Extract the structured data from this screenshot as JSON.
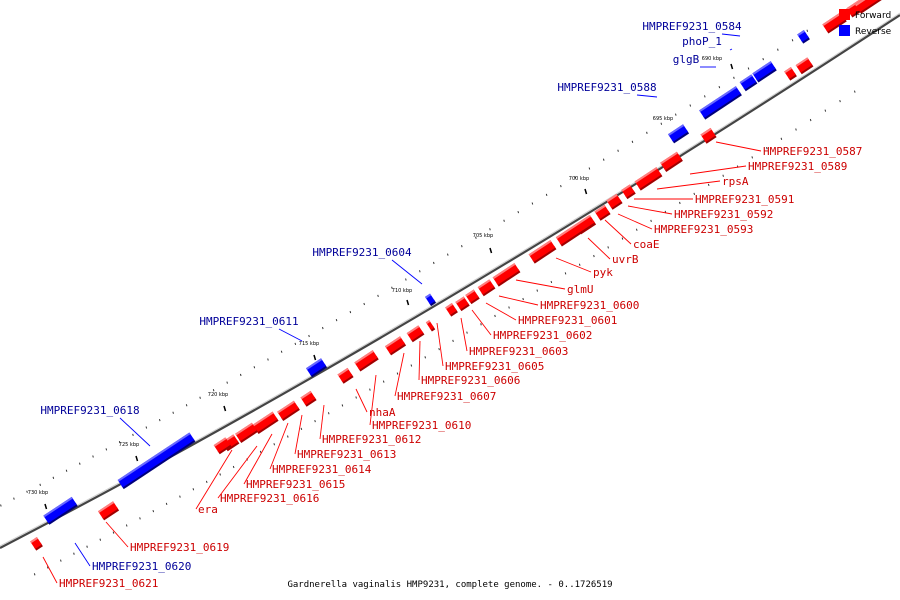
{
  "colors": {
    "forward": "#ff0000",
    "reverse": "#0000ff",
    "forward_label": "#cc0000",
    "reverse_label": "#000099"
  },
  "legend": {
    "forward_label": "Forward",
    "reverse_label": "Reverse"
  },
  "caption": "Gardnerella vaginalis HMP9231, complete genome. - 0..1726519",
  "ticks": [
    "690 kbp",
    "695 kbp",
    "700 kbp",
    "705 kbp",
    "710 kbp",
    "715 kbp",
    "720 kbp",
    "725 kbp",
    "730 kbp"
  ],
  "genes": [
    {
      "name": "HMPREF9231_0584",
      "strand": "reverse"
    },
    {
      "name": "phoP_1",
      "strand": "reverse"
    },
    {
      "name": "glgB",
      "strand": "reverse"
    },
    {
      "name": "HMPREF9231_0588",
      "strand": "reverse"
    },
    {
      "name": "HMPREF9231_0587",
      "strand": "forward"
    },
    {
      "name": "HMPREF9231_0589",
      "strand": "forward"
    },
    {
      "name": "rpsA",
      "strand": "forward"
    },
    {
      "name": "HMPREF9231_0591",
      "strand": "forward"
    },
    {
      "name": "HMPREF9231_0592",
      "strand": "forward"
    },
    {
      "name": "HMPREF9231_0593",
      "strand": "forward"
    },
    {
      "name": "coaE",
      "strand": "forward"
    },
    {
      "name": "uvrB",
      "strand": "forward"
    },
    {
      "name": "pyk",
      "strand": "forward"
    },
    {
      "name": "glmU",
      "strand": "forward"
    },
    {
      "name": "HMPREF9231_0600",
      "strand": "forward"
    },
    {
      "name": "HMPREF9231_0601",
      "strand": "forward"
    },
    {
      "name": "HMPREF9231_0602",
      "strand": "forward"
    },
    {
      "name": "HMPREF9231_0603",
      "strand": "forward"
    },
    {
      "name": "HMPREF9231_0604",
      "strand": "reverse"
    },
    {
      "name": "HMPREF9231_0605",
      "strand": "forward"
    },
    {
      "name": "HMPREF9231_0606",
      "strand": "forward"
    },
    {
      "name": "HMPREF9231_0607",
      "strand": "forward"
    },
    {
      "name": "HMPREF9231_0611",
      "strand": "reverse"
    },
    {
      "name": "HMPREF9231_0610",
      "strand": "forward"
    },
    {
      "name": "nhaA",
      "strand": "forward"
    },
    {
      "name": "HMPREF9231_0612",
      "strand": "forward"
    },
    {
      "name": "HMPREF9231_0613",
      "strand": "forward"
    },
    {
      "name": "HMPREF9231_0614",
      "strand": "forward"
    },
    {
      "name": "HMPREF9231_0615",
      "strand": "forward"
    },
    {
      "name": "HMPREF9231_0616",
      "strand": "forward"
    },
    {
      "name": "era",
      "strand": "forward"
    },
    {
      "name": "HMPREF9231_0618",
      "strand": "reverse"
    },
    {
      "name": "HMPREF9231_0619",
      "strand": "forward"
    },
    {
      "name": "HMPREF9231_0620",
      "strand": "reverse"
    },
    {
      "name": "HMPREF9231_0621",
      "strand": "forward"
    }
  ]
}
